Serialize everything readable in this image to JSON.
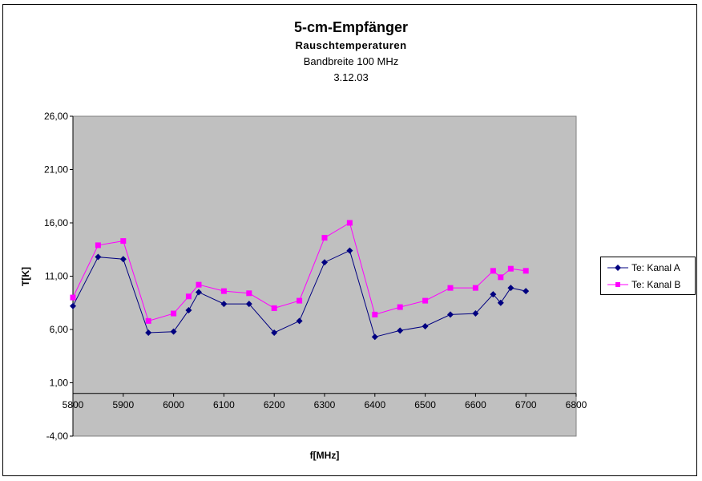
{
  "chart_data": {
    "type": "line",
    "title": "5-cm-Empfänger",
    "subtitle": "Rauschtemperaturen",
    "subtitle2": "Bandbreite 100 MHz",
    "date": "3.12.03",
    "xlabel": "f[MHz]",
    "ylabel": "T[K]",
    "xlim": [
      5800,
      6800
    ],
    "ylim": [
      -4,
      26
    ],
    "x_ticks": [
      "5800",
      "5900",
      "6000",
      "6100",
      "6200",
      "6300",
      "6400",
      "6500",
      "6600",
      "6700",
      "6800"
    ],
    "y_ticks": [
      "26,00",
      "21,00",
      "16,00",
      "11,00",
      "6,00",
      "1,00",
      "-4,00"
    ],
    "x_axis_crosses_at": 0,
    "plot_background": "#c0c0c0",
    "gridlines": false,
    "legend_position": "right",
    "series": [
      {
        "name": "Te: Kanal A",
        "color": "#000080",
        "marker": "diamond",
        "x": [
          5800,
          5850,
          5900,
          5950,
          6000,
          6030,
          6050,
          6100,
          6150,
          6200,
          6250,
          6300,
          6350,
          6400,
          6450,
          6500,
          6550,
          6600,
          6635,
          6650,
          6670,
          6700
        ],
        "values": [
          8.2,
          12.8,
          12.6,
          5.7,
          5.8,
          7.8,
          9.5,
          8.4,
          8.4,
          5.7,
          6.8,
          12.3,
          13.4,
          5.3,
          5.9,
          6.3,
          7.4,
          7.5,
          9.3,
          8.5,
          9.9,
          9.6
        ]
      },
      {
        "name": "Te: Kanal B",
        "color": "#ff00ff",
        "marker": "square",
        "x": [
          5800,
          5850,
          5900,
          5950,
          6000,
          6030,
          6050,
          6100,
          6150,
          6200,
          6250,
          6300,
          6350,
          6400,
          6450,
          6500,
          6550,
          6600,
          6635,
          6650,
          6670,
          6700
        ],
        "values": [
          9.0,
          13.9,
          14.3,
          6.8,
          7.5,
          9.1,
          10.2,
          9.6,
          9.4,
          8.0,
          8.7,
          14.6,
          16.0,
          7.4,
          8.1,
          8.7,
          9.9,
          9.9,
          11.5,
          10.9,
          11.7,
          11.5
        ]
      }
    ]
  }
}
